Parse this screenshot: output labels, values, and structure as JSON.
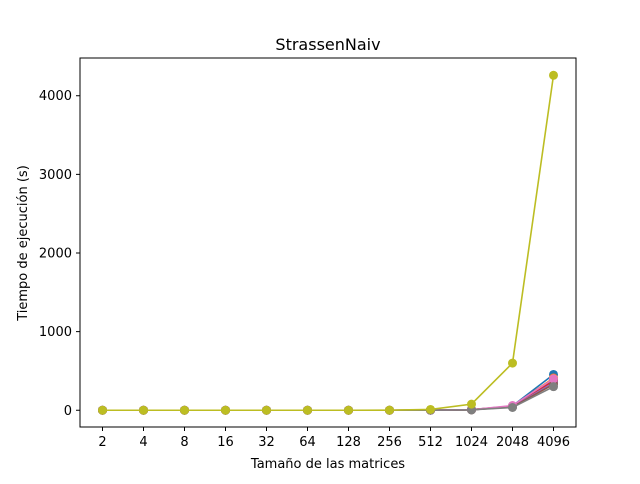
{
  "chart_data": {
    "type": "line",
    "title": "StrassenNaiv",
    "xlabel": "Tamaño de las matrices",
    "ylabel": "Tiempo de ejecución (s)",
    "categories": [
      "2",
      "4",
      "8",
      "16",
      "32",
      "64",
      "128",
      "256",
      "512",
      "1024",
      "2048",
      "4096"
    ],
    "yticks": [
      0,
      1000,
      2000,
      3000,
      4000
    ],
    "ylim": [
      -213,
      4480
    ],
    "grid": false,
    "legend": "none",
    "series": [
      {
        "color": "#1f77b4",
        "values": [
          0,
          0,
          0,
          0,
          0,
          0,
          0,
          0,
          1,
          7,
          55,
          455
        ]
      },
      {
        "color": "#ff7f0e",
        "values": [
          0,
          0,
          0,
          0,
          0,
          0,
          0,
          0,
          1,
          7,
          52,
          410
        ]
      },
      {
        "color": "#2ca02c",
        "values": [
          0,
          0,
          0,
          0,
          0,
          0,
          0,
          0,
          1,
          6,
          48,
          390
        ]
      },
      {
        "color": "#d62728",
        "values": [
          0,
          0,
          0,
          0,
          0,
          0,
          0,
          0,
          1,
          7,
          50,
          375
        ]
      },
      {
        "color": "#9467bd",
        "values": [
          0,
          0,
          0,
          0,
          0,
          0,
          0,
          0,
          1,
          6,
          45,
          350
        ]
      },
      {
        "color": "#8c564b",
        "values": [
          0,
          0,
          0,
          0,
          0,
          0,
          0,
          0,
          1,
          6,
          42,
          330
        ]
      },
      {
        "color": "#e377c2",
        "values": [
          0,
          0,
          0,
          0,
          0,
          0,
          0,
          0,
          1,
          8,
          60,
          400
        ]
      },
      {
        "color": "#7f7f7f",
        "values": [
          0,
          0,
          0,
          0,
          0,
          0,
          0,
          0,
          1,
          5,
          35,
          300
        ]
      },
      {
        "color": "#bcbd22",
        "values": [
          0,
          0,
          0,
          0,
          0,
          0,
          0,
          1,
          10,
          78,
          600,
          4260
        ]
      }
    ]
  }
}
